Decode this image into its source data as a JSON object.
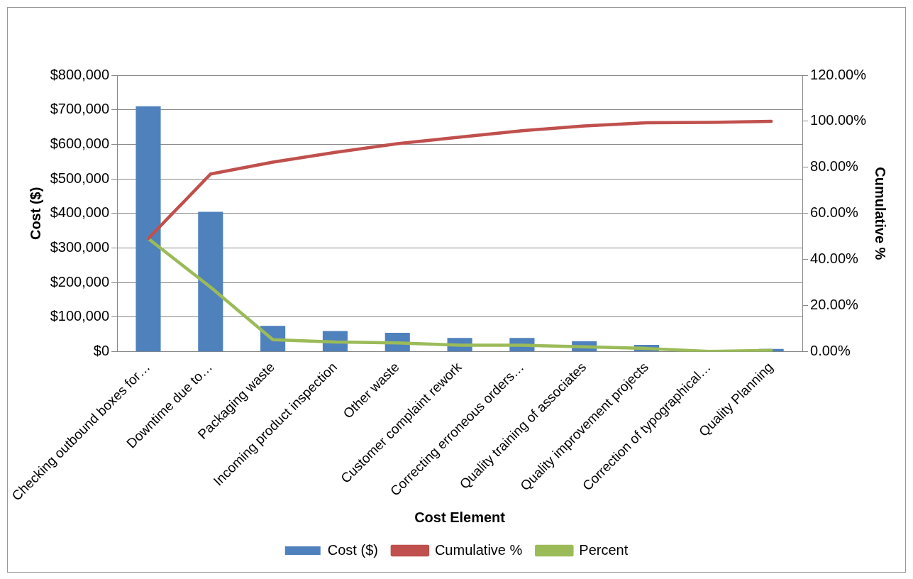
{
  "chart_data": {
    "type": "bar",
    "xlabel": "Cost Element",
    "ylabel": "Cost ($)",
    "y2label": "Cumulative %",
    "categories": [
      "Checking outbound boxes for…",
      "Downtime due to…",
      "Packaging waste",
      "Incoming product inspection",
      "Other waste",
      "Customer complaint rework",
      "Correcting erroneous orders…",
      "Quality training of associates",
      "Quality improvement projects",
      "Correction of typographical…",
      "Quality Planning"
    ],
    "series": [
      {
        "name": "Cost ($)",
        "color": "#4f81bd",
        "values": [
          710000,
          405000,
          75000,
          60000,
          55000,
          40000,
          40000,
          30000,
          20000,
          2000,
          8000
        ]
      },
      {
        "name": "Cumulative %",
        "type": "line",
        "axis": "y2",
        "color": "#c0504d",
        "values": [
          49.1,
          77.1,
          82.3,
          86.5,
          90.3,
          93.1,
          95.9,
          98.0,
          99.4,
          99.5,
          100
        ]
      },
      {
        "name": "Percent",
        "type": "line",
        "axis": "y2",
        "color": "#9bbb59",
        "values": [
          49.1,
          28.0,
          5.2,
          4.2,
          3.8,
          2.8,
          2.8,
          2.1,
          1.4,
          0.1,
          0.6
        ]
      }
    ],
    "ylim": [
      0,
      800000
    ],
    "yticks": [
      {
        "value": 0,
        "label": "$0"
      },
      {
        "value": 100000,
        "label": "$100,000"
      },
      {
        "value": 200000,
        "label": "$200,000"
      },
      {
        "value": 300000,
        "label": "$300,000"
      },
      {
        "value": 400000,
        "label": "$400,000"
      },
      {
        "value": 500000,
        "label": "$500,000"
      },
      {
        "value": 600000,
        "label": "$600,000"
      },
      {
        "value": 700000,
        "label": "$700,000"
      },
      {
        "value": 800000,
        "label": "$800,000"
      }
    ],
    "y2lim": [
      0,
      120
    ],
    "y2ticks": [
      {
        "value": 0,
        "label": "0.00%"
      },
      {
        "value": 20,
        "label": "20.00%"
      },
      {
        "value": 40,
        "label": "40.00%"
      },
      {
        "value": 60,
        "label": "60.00%"
      },
      {
        "value": 80,
        "label": "80.00%"
      },
      {
        "value": 100,
        "label": "100.00%"
      },
      {
        "value": 120,
        "label": "120.00%"
      }
    ],
    "grid": "y",
    "legend": "bottom",
    "marker": "none"
  }
}
